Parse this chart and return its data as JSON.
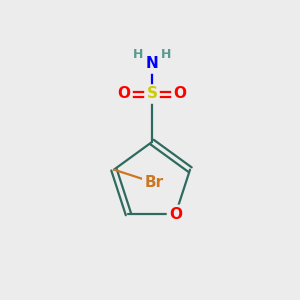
{
  "bg_color": "#ececec",
  "atom_colors": {
    "C": "#2d6b5e",
    "H": "#5a9990",
    "N": "#0000ff",
    "O": "#ff0000",
    "S": "#cccc00",
    "Br": "#cc7722"
  },
  "bond_color": "#2d6b5e",
  "figsize": [
    3.0,
    3.0
  ],
  "dpi": 100
}
